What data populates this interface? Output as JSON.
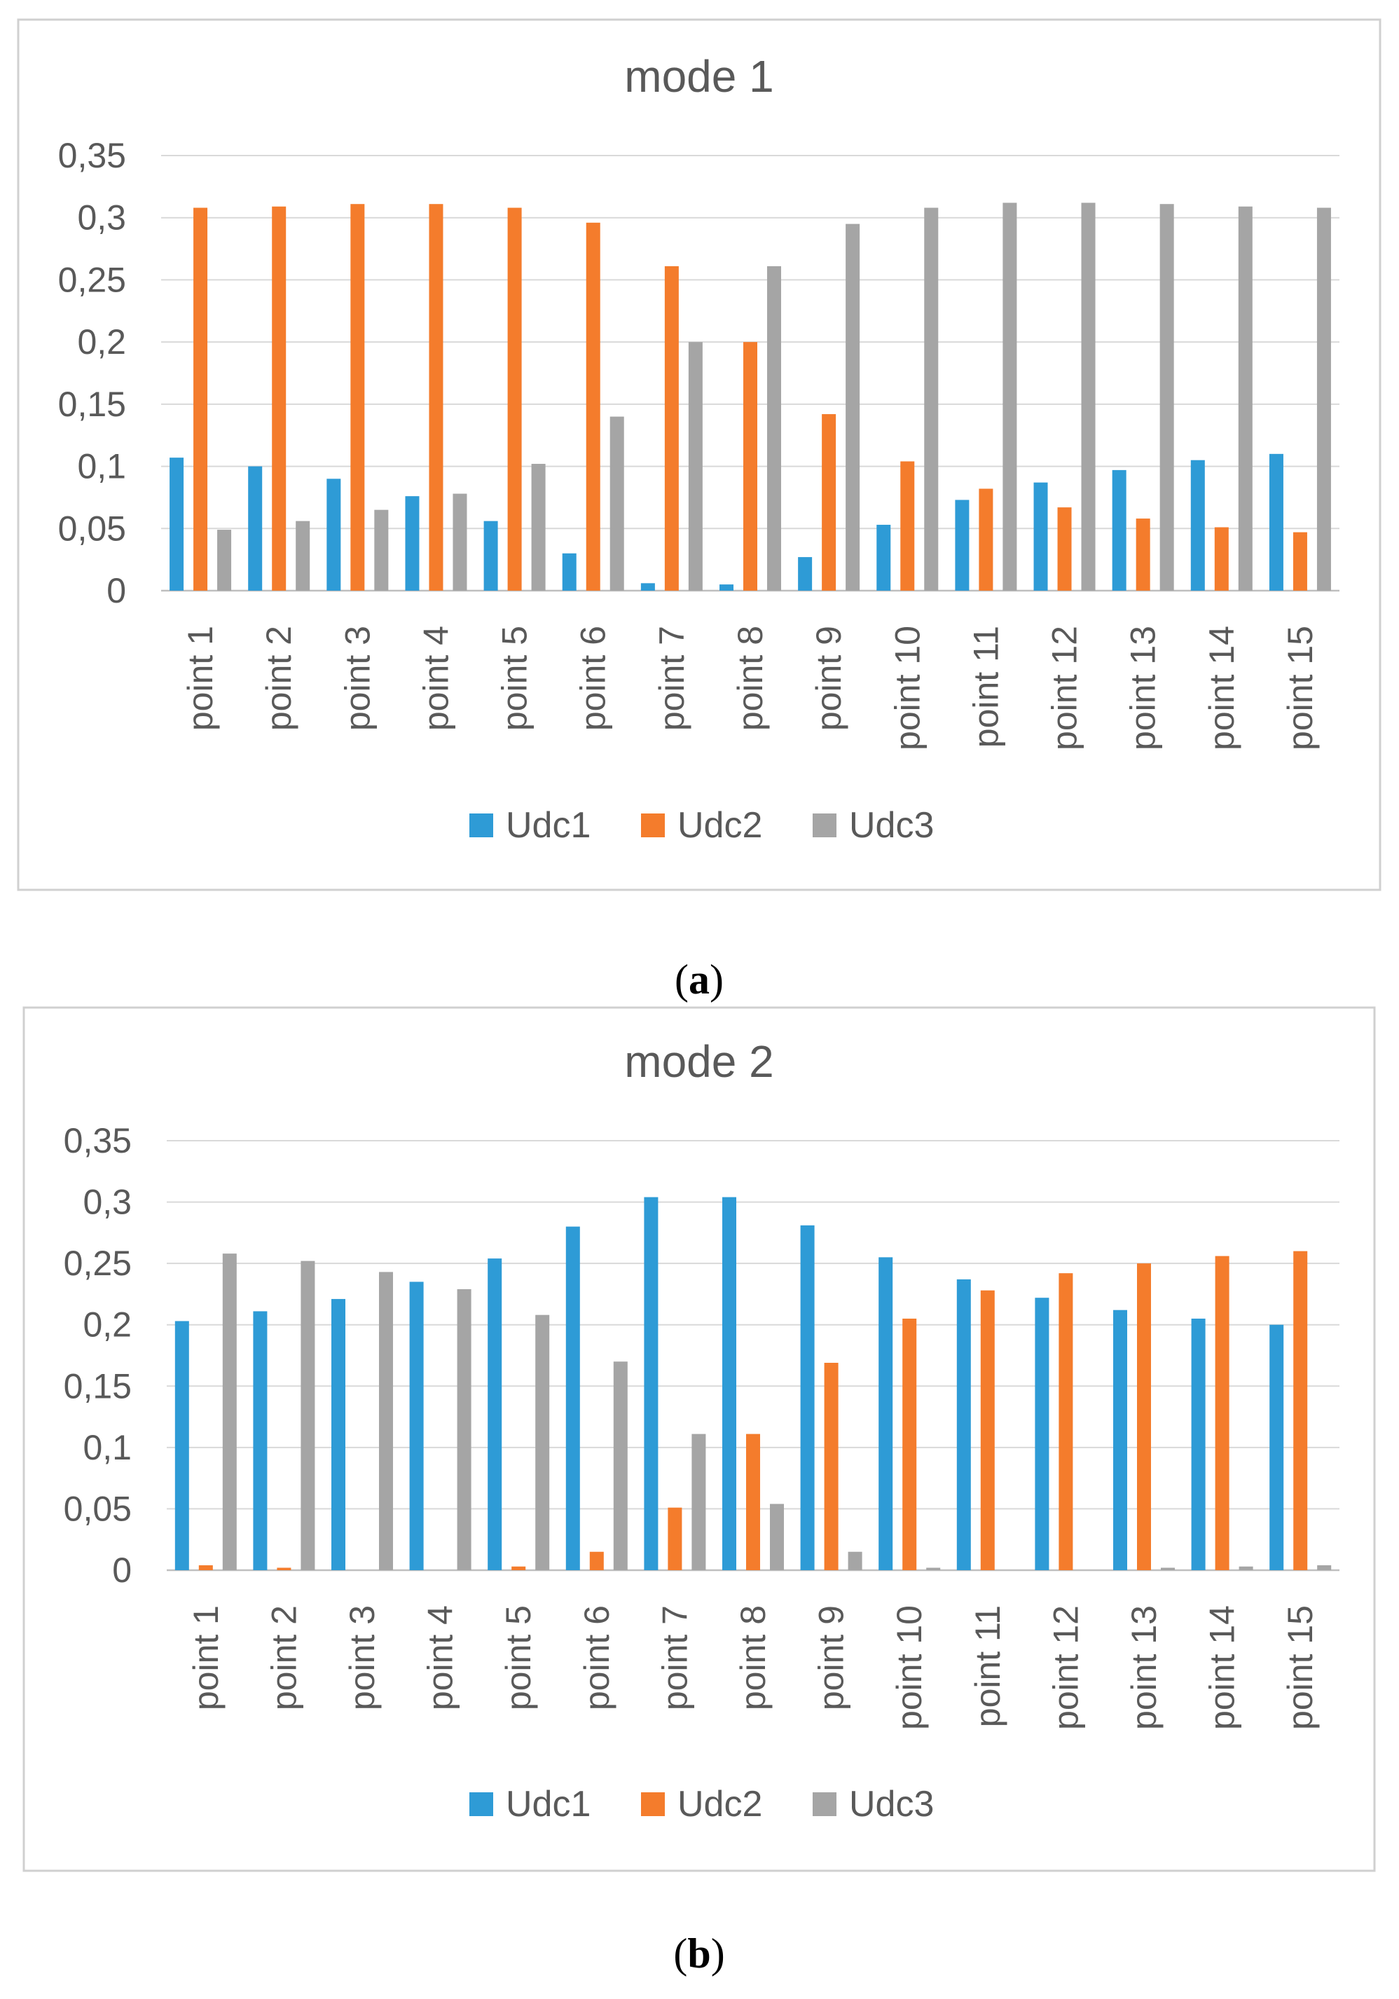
{
  "chart_data": [
    {
      "type": "bar",
      "title": "mode 1",
      "caption_open": "(",
      "caption_letter": "a",
      "caption_close": ")",
      "xlabel": "",
      "ylabel": "",
      "ylim": [
        0,
        0.35
      ],
      "yticks": [
        0,
        0.05,
        0.1,
        0.15,
        0.2,
        0.25,
        0.3,
        0.35
      ],
      "ytick_labels": [
        "0",
        "0,05",
        "0,1",
        "0,15",
        "0,2",
        "0,25",
        "0,3",
        "0,35"
      ],
      "grid": true,
      "legend_position": "bottom",
      "categories": [
        "point 1",
        "point 2",
        "point 3",
        "point 4",
        "point 5",
        "point 6",
        "point 7",
        "point 8",
        "point 9",
        "point 10",
        "point 11",
        "point 12",
        "point 13",
        "point 14",
        "point 15"
      ],
      "series": [
        {
          "name": "Udc1",
          "color": "#2E9BD6",
          "values": [
            0.107,
            0.1,
            0.09,
            0.076,
            0.056,
            0.03,
            0.006,
            0.005,
            0.027,
            0.053,
            0.073,
            0.087,
            0.097,
            0.105,
            0.11
          ]
        },
        {
          "name": "Udc2",
          "color": "#F47C2C",
          "values": [
            0.308,
            0.309,
            0.311,
            0.311,
            0.308,
            0.296,
            0.261,
            0.2,
            0.142,
            0.104,
            0.082,
            0.067,
            0.058,
            0.051,
            0.047
          ]
        },
        {
          "name": "Udc3",
          "color": "#A5A5A5",
          "values": [
            0.049,
            0.056,
            0.065,
            0.078,
            0.102,
            0.14,
            0.2,
            0.261,
            0.295,
            0.308,
            0.312,
            0.312,
            0.311,
            0.309,
            0.308
          ]
        }
      ]
    },
    {
      "type": "bar",
      "title": "mode 2",
      "caption_open": "(",
      "caption_letter": "b",
      "caption_close": ")",
      "xlabel": "",
      "ylabel": "",
      "ylim": [
        0,
        0.35
      ],
      "yticks": [
        0,
        0.05,
        0.1,
        0.15,
        0.2,
        0.25,
        0.3,
        0.35
      ],
      "ytick_labels": [
        "0",
        "0,05",
        "0,1",
        "0,15",
        "0,2",
        "0,25",
        "0,3",
        "0,35"
      ],
      "grid": true,
      "legend_position": "bottom",
      "categories": [
        "point 1",
        "point 2",
        "point 3",
        "point 4",
        "point 5",
        "point 6",
        "point 7",
        "point 8",
        "point 9",
        "point 10",
        "point 11",
        "point 12",
        "point 13",
        "point 14",
        "point 15"
      ],
      "series": [
        {
          "name": "Udc1",
          "color": "#2E9BD6",
          "values": [
            0.203,
            0.211,
            0.221,
            0.235,
            0.254,
            0.28,
            0.304,
            0.304,
            0.281,
            0.255,
            0.237,
            0.222,
            0.212,
            0.205,
            0.2
          ]
        },
        {
          "name": "Udc2",
          "color": "#F47C2C",
          "values": [
            0.004,
            0.002,
            0.0,
            0.0,
            0.003,
            0.015,
            0.051,
            0.111,
            0.169,
            0.205,
            0.228,
            0.242,
            0.25,
            0.256,
            0.26
          ]
        },
        {
          "name": "Udc3",
          "color": "#A5A5A5",
          "values": [
            0.258,
            0.252,
            0.243,
            0.229,
            0.208,
            0.17,
            0.111,
            0.054,
            0.015,
            0.002,
            0.0,
            0.0,
            0.002,
            0.003,
            0.004
          ]
        }
      ]
    }
  ]
}
